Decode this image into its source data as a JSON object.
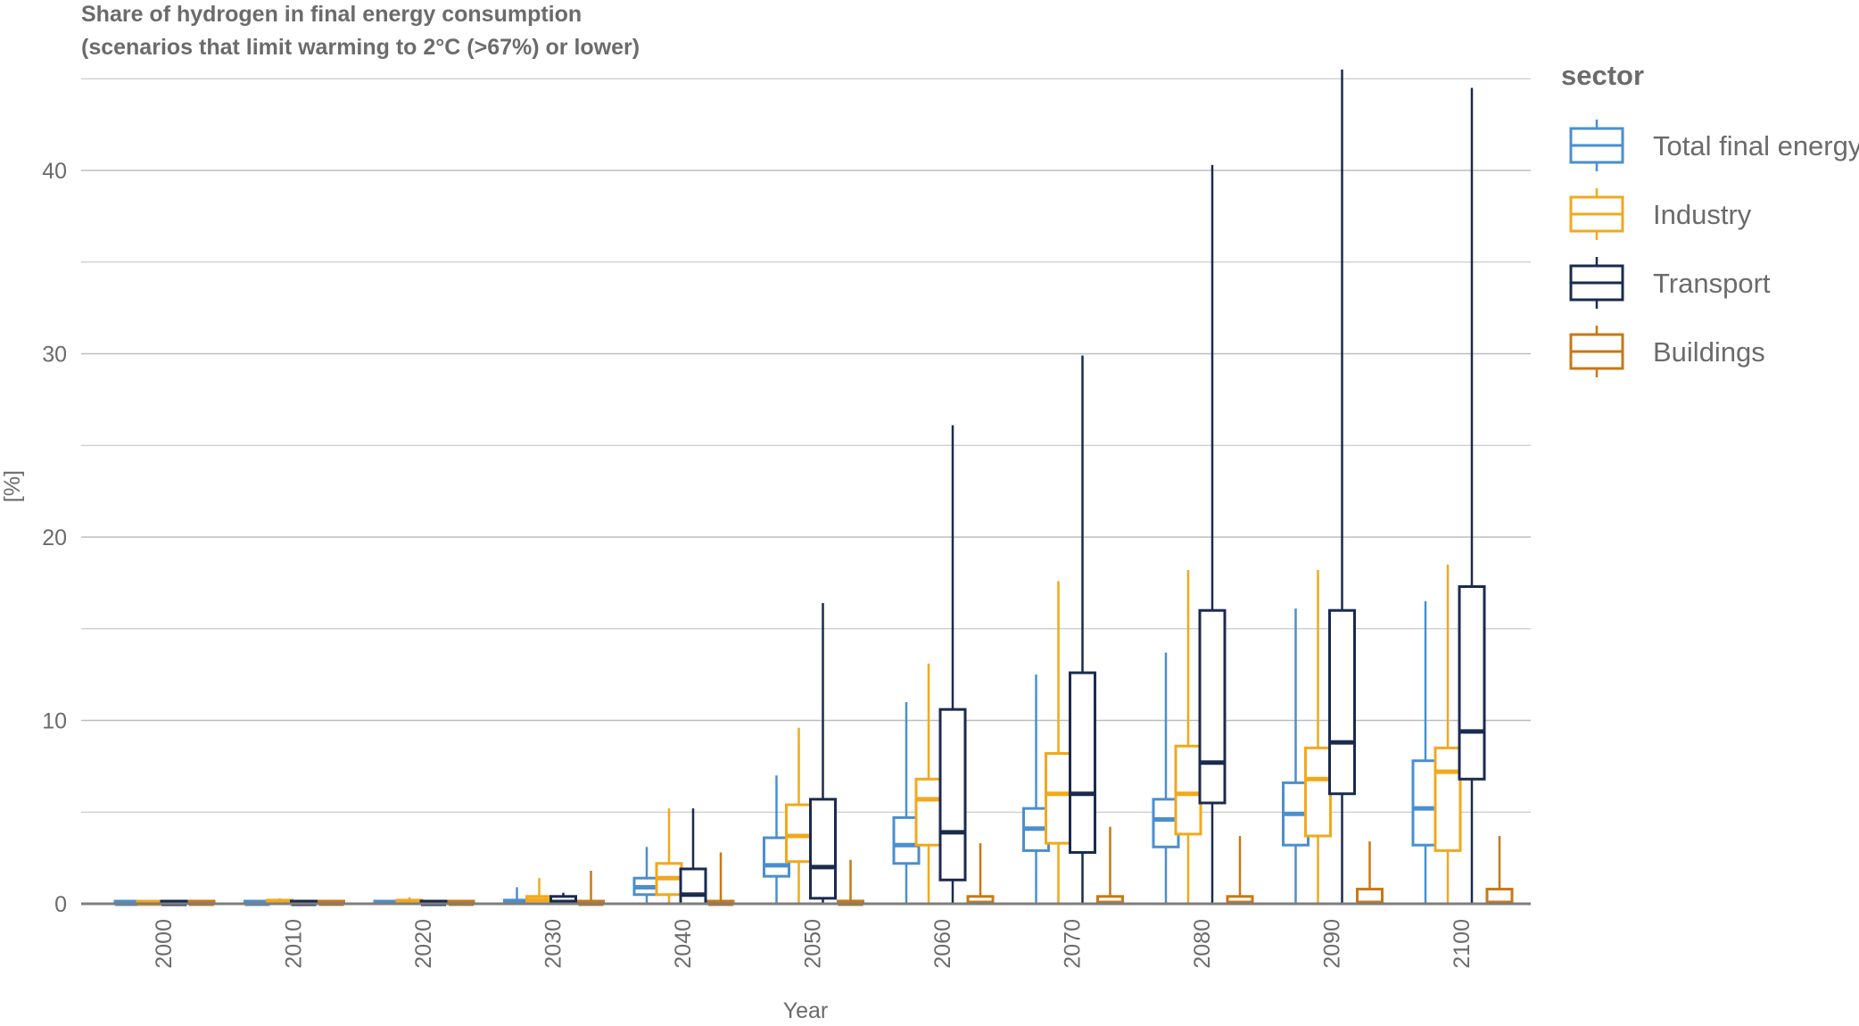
{
  "chart_data": {
    "type": "boxplot",
    "title": "Share of hydrogen in final energy consumption",
    "subtitle": "(scenarios that limit warming to 2°C (>67%) or lower)",
    "xlabel": "Year",
    "ylabel": "[%]",
    "ylim": [
      0,
      45
    ],
    "yticks": [
      0,
      10,
      20,
      30,
      40
    ],
    "grid": true,
    "legend_title": "sector",
    "legend_position": "right",
    "categories": [
      "2000",
      "2010",
      "2020",
      "2030",
      "2040",
      "2050",
      "2060",
      "2070",
      "2080",
      "2090",
      "2100"
    ],
    "series": [
      {
        "name": "Total final energy",
        "color": "#4a8fd0",
        "boxes": [
          {
            "min": 0,
            "q1": 0,
            "median": 0,
            "q3": 0,
            "max": 0
          },
          {
            "min": 0,
            "q1": 0,
            "median": 0,
            "q3": 0.05,
            "max": 0.05
          },
          {
            "min": 0,
            "q1": 0,
            "median": 0.05,
            "q3": 0.1,
            "max": 0.15
          },
          {
            "min": 0,
            "q1": 0,
            "median": 0.1,
            "q3": 0.2,
            "max": 0.9
          },
          {
            "min": 0,
            "q1": 0.5,
            "median": 0.9,
            "q3": 1.4,
            "max": 3.1
          },
          {
            "min": 0,
            "q1": 1.5,
            "median": 2.1,
            "q3": 3.6,
            "max": 7.0
          },
          {
            "min": 0,
            "q1": 2.2,
            "median": 3.2,
            "q3": 4.7,
            "max": 11.0
          },
          {
            "min": 0,
            "q1": 2.9,
            "median": 4.1,
            "q3": 5.2,
            "max": 12.5
          },
          {
            "min": 0,
            "q1": 3.1,
            "median": 4.6,
            "q3": 5.7,
            "max": 13.7
          },
          {
            "min": 0,
            "q1": 3.2,
            "median": 4.9,
            "q3": 6.6,
            "max": 16.1
          },
          {
            "min": 0,
            "q1": 3.2,
            "median": 5.2,
            "q3": 7.8,
            "max": 16.5
          }
        ]
      },
      {
        "name": "Industry",
        "color": "#f2a81d",
        "boxes": [
          {
            "min": 0,
            "q1": 0,
            "median": 0,
            "q3": 0,
            "max": 0
          },
          {
            "min": 0,
            "q1": 0,
            "median": 0.1,
            "q3": 0.2,
            "max": 0.3
          },
          {
            "min": 0,
            "q1": 0,
            "median": 0.1,
            "q3": 0.2,
            "max": 0.35
          },
          {
            "min": 0,
            "q1": 0,
            "median": 0.2,
            "q3": 0.4,
            "max": 1.4
          },
          {
            "min": 0,
            "q1": 0.5,
            "median": 1.4,
            "q3": 2.2,
            "max": 5.2
          },
          {
            "min": 0,
            "q1": 2.3,
            "median": 3.7,
            "q3": 5.4,
            "max": 9.6
          },
          {
            "min": 0,
            "q1": 3.2,
            "median": 5.7,
            "q3": 6.8,
            "max": 13.1
          },
          {
            "min": 0,
            "q1": 3.3,
            "median": 6.0,
            "q3": 8.2,
            "max": 17.6
          },
          {
            "min": 0,
            "q1": 3.8,
            "median": 6.0,
            "q3": 8.6,
            "max": 18.2
          },
          {
            "min": 0,
            "q1": 3.7,
            "median": 6.8,
            "q3": 8.5,
            "max": 18.2
          },
          {
            "min": 0,
            "q1": 2.9,
            "median": 7.2,
            "q3": 8.5,
            "max": 18.5
          }
        ]
      },
      {
        "name": "Transport",
        "color": "#1b2a4e",
        "boxes": [
          {
            "min": 0,
            "q1": 0,
            "median": 0,
            "q3": 0,
            "max": 0
          },
          {
            "min": 0,
            "q1": 0,
            "median": 0,
            "q3": 0,
            "max": 0.05
          },
          {
            "min": 0,
            "q1": 0,
            "median": 0,
            "q3": 0.05,
            "max": 0.2
          },
          {
            "min": 0,
            "q1": 0,
            "median": 0.1,
            "q3": 0.4,
            "max": 0.6
          },
          {
            "min": 0,
            "q1": 0,
            "median": 0.5,
            "q3": 1.9,
            "max": 5.2
          },
          {
            "min": 0,
            "q1": 0.3,
            "median": 2.0,
            "q3": 5.7,
            "max": 16.4
          },
          {
            "min": 0,
            "q1": 1.3,
            "median": 3.9,
            "q3": 10.6,
            "max": 26.1
          },
          {
            "min": 0,
            "q1": 2.8,
            "median": 6.0,
            "q3": 12.6,
            "max": 29.9
          },
          {
            "min": 0,
            "q1": 5.5,
            "median": 7.7,
            "q3": 16.0,
            "max": 40.3
          },
          {
            "min": 0,
            "q1": 6.0,
            "median": 8.8,
            "q3": 16.0,
            "max": 45.5
          },
          {
            "min": 0,
            "q1": 6.8,
            "median": 9.4,
            "q3": 17.3,
            "max": 44.5
          }
        ]
      },
      {
        "name": "Buildings",
        "color": "#c87814",
        "boxes": [
          {
            "min": 0,
            "q1": 0,
            "median": 0,
            "q3": 0,
            "max": 0
          },
          {
            "min": 0,
            "q1": 0,
            "median": 0,
            "q3": 0,
            "max": 0
          },
          {
            "min": 0,
            "q1": 0,
            "median": 0,
            "q3": 0,
            "max": 0
          },
          {
            "min": 0,
            "q1": 0,
            "median": 0,
            "q3": 0.05,
            "max": 1.8
          },
          {
            "min": 0,
            "q1": 0,
            "median": 0,
            "q3": 0.05,
            "max": 2.8
          },
          {
            "min": 0,
            "q1": 0,
            "median": 0,
            "q3": 0.15,
            "max": 2.4
          },
          {
            "min": 0,
            "q1": 0,
            "median": 0.05,
            "q3": 0.4,
            "max": 3.3
          },
          {
            "min": 0,
            "q1": 0,
            "median": 0.05,
            "q3": 0.4,
            "max": 4.2
          },
          {
            "min": 0,
            "q1": 0,
            "median": 0.05,
            "q3": 0.4,
            "max": 3.7
          },
          {
            "min": 0,
            "q1": 0,
            "median": 0.05,
            "q3": 0.8,
            "max": 3.4
          },
          {
            "min": 0,
            "q1": 0,
            "median": 0.05,
            "q3": 0.8,
            "max": 3.7
          }
        ]
      }
    ]
  }
}
